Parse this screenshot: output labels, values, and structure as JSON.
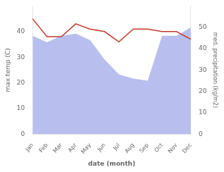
{
  "chart_data": {
    "type": "line",
    "xlabel": "date (month)",
    "ylabel": "max temp (C)",
    "y2label": "med. precipitation (kg/m2)",
    "categories": [
      "Jan",
      "Feb",
      "Mar",
      "Apr",
      "May",
      "Jun",
      "Jul",
      "Aug",
      "Sep",
      "Oct",
      "Nov",
      "Dec"
    ],
    "series": [
      {
        "type": "area",
        "axis": "y2",
        "color": "#b8bfee",
        "values": [
          46,
          43,
          46,
          47,
          44,
          35,
          28,
          26,
          25,
          46,
          46,
          50
        ]
      },
      {
        "type": "line",
        "color": "#c0392b",
        "values": [
          45,
          38,
          38,
          43,
          41,
          40,
          36,
          41,
          41,
          40,
          40,
          37
        ]
      }
    ],
    "ylim": [
      0,
      50
    ],
    "yticks": [
      0,
      10,
      20,
      30,
      40
    ],
    "y2lim": [
      0,
      60
    ],
    "y2ticks": [
      0,
      10,
      20,
      30,
      40,
      50
    ],
    "grid": false
  }
}
